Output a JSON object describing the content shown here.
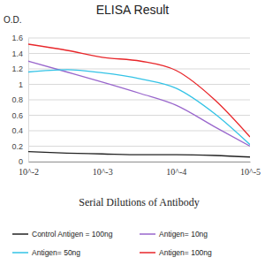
{
  "chart_data": {
    "type": "line",
    "title": "ELISA Result",
    "y_label": "O.D.",
    "x_label": "Serial Dilutions of Antibody",
    "log": "x",
    "grid": true,
    "legend": "bottom",
    "x": [
      0.01,
      0.003,
      0.001,
      0.0003,
      0.0001,
      3e-05,
      1e-05
    ],
    "xlim": [
      0.01,
      1e-05
    ],
    "xticks": [
      {
        "value": 0.01,
        "label": "10^-2"
      },
      {
        "value": 0.001,
        "label": "10^-3"
      },
      {
        "value": 0.0001,
        "label": "10^-4"
      },
      {
        "value": 1e-05,
        "label": "10^-5"
      }
    ],
    "ylim": [
      0,
      1.6
    ],
    "yticks": [
      0,
      0.2,
      0.4,
      0.6,
      0.8,
      1,
      1.2,
      1.4,
      1.6
    ],
    "series": [
      {
        "name": "Control Antigen = 100ng",
        "color": "#222222",
        "values": [
          0.13,
          0.11,
          0.1,
          0.09,
          0.09,
          0.08,
          0.06
        ]
      },
      {
        "name": "Antigen= 10ng",
        "color": "#9966cc",
        "values": [
          1.3,
          1.16,
          1.03,
          0.88,
          0.73,
          0.45,
          0.2
        ]
      },
      {
        "name": "Antigen= 50ng",
        "color": "#33c3e6",
        "values": [
          1.16,
          1.19,
          1.15,
          1.07,
          0.95,
          0.62,
          0.22
        ]
      },
      {
        "name": "Antigen= 100ng",
        "color": "#e8262a",
        "values": [
          1.52,
          1.44,
          1.35,
          1.3,
          1.18,
          0.8,
          0.32
        ]
      }
    ]
  }
}
